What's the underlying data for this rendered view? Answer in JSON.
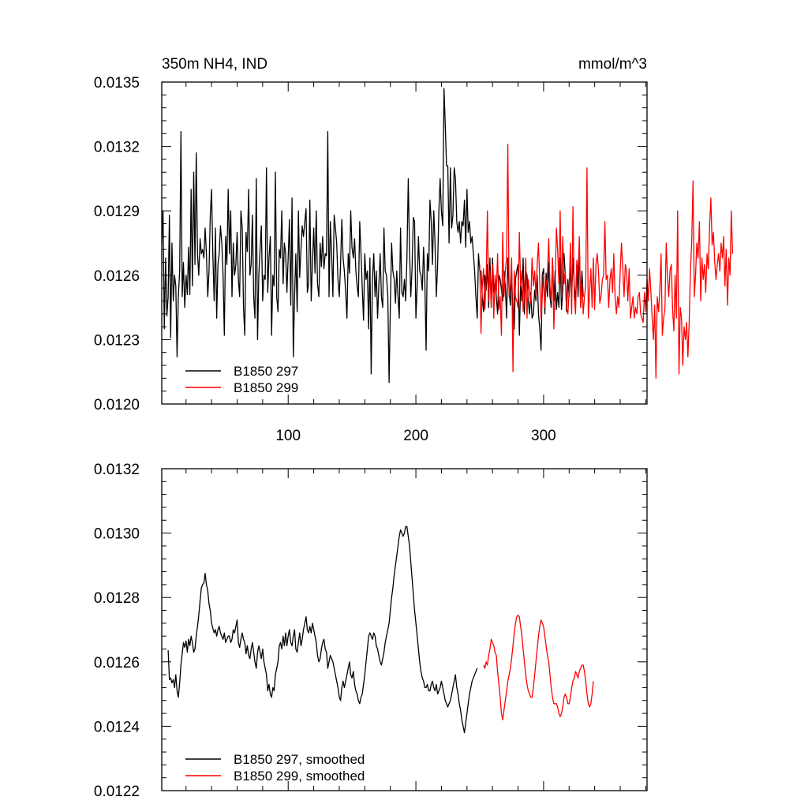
{
  "chart_data": [
    {
      "type": "line",
      "title": "350m NH4, IND",
      "units": "mmol/m^3",
      "ylim": [
        0.012,
        0.0135
      ],
      "xlim": [
        1,
        381
      ],
      "y_ticks": [
        "0.0120",
        "0.0123",
        "0.0126",
        "0.0129",
        "0.0132",
        "0.0135"
      ],
      "x_ticks": [
        "100",
        "200",
        "300"
      ],
      "legend_position": "bottom-left",
      "series": [
        {
          "name": "B1850 297",
          "color": "#000000",
          "x_start": 1,
          "values": [
            0.01275,
            0.0129,
            0.01235,
            0.01268,
            0.01241,
            0.0125,
            0.01288,
            0.01231,
            0.01275,
            0.01248,
            0.0126,
            0.01255,
            0.01222,
            0.0125,
            0.01262,
            0.01327,
            0.0125,
            0.01266,
            0.01245,
            0.0126,
            0.01251,
            0.01273,
            0.01251,
            0.013,
            0.01255,
            0.01308,
            0.01265,
            0.01317,
            0.0127,
            0.0126,
            0.01277,
            0.0127,
            0.01272,
            0.01268,
            0.01282,
            0.0127,
            0.0125,
            0.01262,
            0.01288,
            0.013,
            0.0127,
            0.01248,
            0.01282,
            0.0124,
            0.01265,
            0.0127,
            0.01283,
            0.01275,
            0.0126,
            0.01232,
            0.01278,
            0.01265,
            0.013,
            0.0127,
            0.0129,
            0.0125,
            0.01275,
            0.0126,
            0.01265,
            0.0128,
            0.01258,
            0.0125,
            0.0129,
            0.01282,
            0.01245,
            0.01232,
            0.0128,
            0.01271,
            0.013,
            0.0126,
            0.01265,
            0.01288,
            0.0125,
            0.0124,
            0.01305,
            0.0123,
            0.0126,
            0.01272,
            0.01283,
            0.01248,
            0.0126,
            0.01258,
            0.0131,
            0.01252,
            0.01268,
            0.01278,
            0.01232,
            0.0126,
            0.01255,
            0.01308,
            0.0125,
            0.01243,
            0.01272,
            0.01268,
            0.0129,
            0.01256,
            0.01275,
            0.0127,
            0.01252,
            0.01268,
            0.01286,
            0.01246,
            0.01296,
            0.01222,
            0.0125,
            0.0127,
            0.01243,
            0.0129,
            0.01259,
            0.01272,
            0.01283,
            0.01278,
            0.01285,
            0.01291,
            0.01252,
            0.01256,
            0.01295,
            0.01248,
            0.01266,
            0.01282,
            0.01261,
            0.0129,
            0.01256,
            0.0125,
            0.01275,
            0.01264,
            0.01278,
            0.01263,
            0.0127,
            0.01269,
            0.01327,
            0.0125,
            0.01285,
            0.0127,
            0.0125,
            0.01288,
            0.01282,
            0.01275,
            0.01258,
            0.0125,
            0.01265,
            0.01286,
            0.01268,
            0.01262,
            0.01252,
            0.0124,
            0.0127,
            0.01261,
            0.0129,
            0.01273,
            0.01268,
            0.01277,
            0.01262,
            0.01255,
            0.0125,
            0.01285,
            0.0127,
            0.01254,
            0.01239,
            0.0127,
            0.01258,
            0.01262,
            0.01235,
            0.01268,
            0.01214,
            0.01258,
            0.0127,
            0.0125,
            0.01262,
            0.0124,
            0.01255,
            0.0127,
            0.0125,
            0.01245,
            0.01282,
            0.01262,
            0.0126,
            0.0125,
            0.0121,
            0.01246,
            0.01275,
            0.01262,
            0.01258,
            0.01247,
            0.01262,
            0.0125,
            0.0124,
            0.01282,
            0.01252,
            0.0125,
            0.01258,
            0.01248,
            0.01268,
            0.01305,
            0.01272,
            0.0125,
            0.01263,
            0.01287,
            0.01285,
            0.0124,
            0.01255,
            0.01278,
            0.01262,
            0.0126,
            0.01253,
            0.01273,
            0.01258,
            0.01225,
            0.0127,
            0.01262,
            0.01295,
            0.01285,
            0.01265,
            0.0129,
            0.01275,
            0.0125,
            0.01265,
            0.0129,
            0.01305,
            0.0129,
            0.01283,
            0.01347,
            0.0133,
            0.01311,
            0.01311,
            0.01275,
            0.0131,
            0.01282,
            0.01288,
            0.0131,
            0.01305,
            0.01285,
            0.0128,
            0.01285,
            0.01275,
            0.01285,
            0.01283,
            0.01295,
            0.01273,
            0.013,
            0.0128,
            0.01285,
            0.01275,
            0.01278,
            0.0127,
            0.01262,
            0.0125,
            0.0124,
            0.0127,
            0.01262,
            0.01262,
            0.0125,
            0.01243,
            0.0126,
            0.01253,
            0.01265,
            0.01245,
            0.01268,
            0.01245,
            0.01268,
            0.01252,
            0.01258,
            0.0125,
            0.01242,
            0.0126,
            0.01258,
            0.01253,
            0.01248,
            0.01262,
            0.01255,
            0.0124,
            0.01268,
            0.01253,
            0.01246,
            0.01262,
            0.0124,
            0.01235,
            0.01258,
            0.01262,
            0.01265,
            0.01232,
            0.01256,
            0.01248,
            0.01268,
            0.01242,
            0.01262,
            0.0126,
            0.01248,
            0.01242,
            0.01252,
            0.0124,
            0.01242,
            0.01253,
            0.01248,
            0.0126,
            0.01242,
            0.01235,
            0.01225,
            0.0126,
            0.01263,
            0.01242,
            0.01261,
            0.0125,
            0.01266,
            0.0125,
            0.01245,
            0.01268,
            0.01248,
            0.01262,
            0.01244,
            0.01252,
            0.01245,
            0.01268,
            0.01244,
            0.01253,
            0.0127,
            0.0126,
            0.01243,
            0.01258,
            0.0125,
            0.01263,
            0.0125,
            0.01268,
            0.01255,
            0.01248,
            0.01265,
            0.0125,
            0.01273,
            0.01245,
            0.01262,
            0.0125
          ]
        },
        {
          "name": "B1850 299",
          "color": "#ff0000",
          "x_start": 250,
          "values": [
            0.01265,
            0.01233,
            0.01255,
            0.01263,
            0.01244,
            0.01258,
            0.0129,
            0.01248,
            0.01262,
            0.01245,
            0.01265,
            0.0124,
            0.0126,
            0.01252,
            0.0127,
            0.01244,
            0.0125,
            0.01232,
            0.0128,
            0.0125,
            0.01262,
            0.01268,
            0.01321,
            0.0125,
            0.01255,
            0.01268,
            0.01215,
            0.01262,
            0.0125,
            0.01248,
            0.01245,
            0.0128,
            0.01255,
            0.01262,
            0.01243,
            0.0125,
            0.01268,
            0.0124,
            0.01258,
            0.01252,
            0.01247,
            0.01268,
            0.01255,
            0.01262,
            0.0125,
            0.01265,
            0.01275,
            0.01256,
            0.0124,
            0.0125,
            0.0126,
            0.01245,
            0.01255,
            0.0126,
            0.01277,
            0.01255,
            0.01248,
            0.01268,
            0.01235,
            0.01253,
            0.01282,
            0.01272,
            0.01256,
            0.0129,
            0.0125,
            0.01278,
            0.01256,
            0.01262,
            0.01245,
            0.01242,
            0.01253,
            0.01275,
            0.01242,
            0.01292,
            0.0125,
            0.01242,
            0.01267,
            0.0126,
            0.01278,
            0.01245,
            0.01256,
            0.01242,
            0.0125,
            0.01255,
            0.0131,
            0.0124,
            0.01252,
            0.01263,
            0.01245,
            0.01268,
            0.01244,
            0.01265,
            0.0127,
            0.01262,
            0.01247,
            0.0125,
            0.01258,
            0.0126,
            0.01285,
            0.01258,
            0.0126,
            0.01245,
            0.01258,
            0.01263,
            0.01252,
            0.0127,
            0.0125,
            0.01242,
            0.0125,
            0.01245,
            0.01262,
            0.01275,
            0.01263,
            0.0125,
            0.01265,
            0.01262,
            0.01248,
            0.01263,
            0.0124,
            0.01245,
            0.0125,
            0.0124,
            0.01245,
            0.01242,
            0.0125,
            0.01252,
            0.01242,
            0.0124,
            0.01238,
            0.01252,
            0.01243,
            0.01258,
            0.01248,
            0.01263,
            0.01252,
            0.0124,
            0.0123,
            0.01246,
            0.01212,
            0.0125,
            0.01243,
            0.01253,
            0.0127,
            0.01232,
            0.0124,
            0.01244,
            0.01275,
            0.0126,
            0.0125,
            0.01262,
            0.01265,
            0.01244,
            0.01234,
            0.0126,
            0.0124,
            0.0129,
            0.01214,
            0.01245,
            0.0124,
            0.01218,
            0.01236,
            0.0123,
            0.01238,
            0.01222,
            0.01238,
            0.01262,
            0.01275,
            0.01304,
            0.0125,
            0.0126,
            0.01275,
            0.01268,
            0.01285,
            0.01248,
            0.01268,
            0.01258,
            0.01265,
            0.01252,
            0.0127,
            0.01263,
            0.01283,
            0.01296,
            0.01274,
            0.0128,
            0.01266,
            0.01258,
            0.01265,
            0.0127,
            0.01262,
            0.01275,
            0.01268,
            0.01278,
            0.01255,
            0.01272,
            0.01246,
            0.01268,
            0.0126,
            0.0129,
            0.0127
          ]
        }
      ]
    },
    {
      "type": "line",
      "ylim": [
        0.0122,
        0.0132
      ],
      "xlim": [
        1,
        381
      ],
      "y_ticks": [
        "0.0122",
        "0.0124",
        "0.0126",
        "0.0128",
        "0.0130",
        "0.0132"
      ],
      "legend_position": "bottom-left",
      "series": [
        {
          "name": "B1850 297, smoothed",
          "color": "#000000",
          "x_start": 6,
          "values": [
            0.012636,
            0.012545,
            0.01255,
            0.012535,
            0.012545,
            0.01252,
            0.01256,
            0.01251,
            0.01249,
            0.012535,
            0.01259,
            0.012625,
            0.01266,
            0.012645,
            0.012665,
            0.01263,
            0.01267,
            0.01265,
            0.01268,
            0.01266,
            0.01263,
            0.01264,
            0.01268,
            0.01271,
            0.012745,
            0.01279,
            0.01283,
            0.01284,
            0.012845,
            0.012875,
            0.01284,
            0.01282,
            0.01278,
            0.01276,
            0.01272,
            0.012705,
            0.01269,
            0.0127,
            0.01268,
            0.0127,
            0.01271,
            0.01269,
            0.01268,
            0.01267,
            0.01269,
            0.01266,
            0.01267,
            0.01268,
            0.01268,
            0.01266,
            0.01267,
            0.0127,
            0.01269,
            0.01271,
            0.01273,
            0.01266,
            0.012645,
            0.01267,
            0.01269,
            0.01267,
            0.01266,
            0.012625,
            0.01265,
            0.01262,
            0.01261,
            0.01264,
            0.01266,
            0.01263,
            0.0126,
            0.01258,
            0.01263,
            0.01265,
            0.01263,
            0.01261,
            0.01264,
            0.0126,
            0.01258,
            0.01256,
            0.01251,
            0.01253,
            0.0125,
            0.01249,
            0.01252,
            0.01251,
            0.01256,
            0.01258,
            0.0126,
            0.01265,
            0.01266,
            0.01264,
            0.01268,
            0.01265,
            0.01269,
            0.01265,
            0.01268,
            0.0127,
            0.01266,
            0.01265,
            0.01268,
            0.0127,
            0.01264,
            0.01263,
            0.01266,
            0.01269,
            0.01265,
            0.01267,
            0.0127,
            0.01272,
            0.01274,
            0.0127,
            0.01269,
            0.01271,
            0.01269,
            0.01272,
            0.0127,
            0.01268,
            0.01266,
            0.01262,
            0.0126,
            0.01261,
            0.01264,
            0.01266,
            0.01267,
            0.01264,
            0.01263,
            0.01258,
            0.0126,
            0.01262,
            0.01261,
            0.0126,
            0.01258,
            0.01256,
            0.01254,
            0.01252,
            0.01249,
            0.01248,
            0.01252,
            0.01254,
            0.01252,
            0.01254,
            0.01256,
            0.01258,
            0.0126,
            0.01256,
            0.01255,
            0.01257,
            0.01253,
            0.01251,
            0.0125,
            0.01248,
            0.01247,
            0.01249,
            0.0125,
            0.01253,
            0.01256,
            0.0126,
            0.01264,
            0.01268,
            0.01269,
            0.01268,
            0.01267,
            0.01269,
            0.01268,
            0.01265,
            0.01264,
            0.01262,
            0.0126,
            0.01259,
            0.01261,
            0.01263,
            0.01266,
            0.01268,
            0.0127,
            0.01272,
            0.01276,
            0.0128,
            0.01283,
            0.01287,
            0.0129,
            0.01293,
            0.01296,
            0.01299,
            0.01301,
            0.013,
            0.01299,
            0.013,
            0.01302,
            0.01302,
            0.01299,
            0.01296,
            0.01291,
            0.01286,
            0.01281,
            0.01276,
            0.01272,
            0.01268,
            0.01264,
            0.0126,
            0.01257,
            0.01255,
            0.01254,
            0.01252,
            0.01252,
            0.01253,
            0.01251,
            0.01251,
            0.01253,
            0.01254,
            0.01252,
            0.01251,
            0.01253,
            0.0125,
            0.01251,
            0.01252,
            0.01254,
            0.01252,
            0.0125,
            0.01248,
            0.01247,
            0.01246,
            0.01247,
            0.01248,
            0.0125,
            0.01252,
            0.01254,
            0.01256,
            0.01252,
            0.0125,
            0.01247,
            0.01245,
            0.01242,
            0.0124,
            0.01238,
            0.01241,
            0.01244,
            0.01247,
            0.0125,
            0.01252,
            0.01254,
            0.01255,
            0.01256,
            0.01257,
            0.01258
          ]
        },
        {
          "name": "B1850 299, smoothed",
          "color": "#ff0000",
          "x_start": 253,
          "values": [
            0.01259,
            0.01258,
            0.0126,
            0.01259,
            0.01262,
            0.01264,
            0.01267,
            0.01266,
            0.01265,
            0.01263,
            0.01262,
            0.01257,
            0.01253,
            0.01249,
            0.01244,
            0.01242,
            0.01245,
            0.01248,
            0.01251,
            0.01254,
            0.01256,
            0.01258,
            0.01261,
            0.01265,
            0.01269,
            0.01272,
            0.01274,
            0.012745,
            0.01274,
            0.01271,
            0.01268,
            0.01264,
            0.0126,
            0.01256,
            0.01253,
            0.01251,
            0.0125,
            0.01249,
            0.01249,
            0.01252,
            0.01256,
            0.0126,
            0.01264,
            0.01268,
            0.01271,
            0.01273,
            0.01272,
            0.01271,
            0.01268,
            0.01265,
            0.01262,
            0.0126,
            0.01256,
            0.01252,
            0.01249,
            0.01247,
            0.01247,
            0.01247,
            0.01246,
            0.01244,
            0.01243,
            0.01244,
            0.01246,
            0.01249,
            0.0125,
            0.01249,
            0.01247,
            0.01247,
            0.01249,
            0.01252,
            0.01254,
            0.01255,
            0.01257,
            0.01256,
            0.01255,
            0.01257,
            0.01258,
            0.01259,
            0.01259,
            0.01257,
            0.01254,
            0.0125,
            0.01247,
            0.01246,
            0.01247,
            0.0125,
            0.01254
          ]
        }
      ]
    }
  ]
}
